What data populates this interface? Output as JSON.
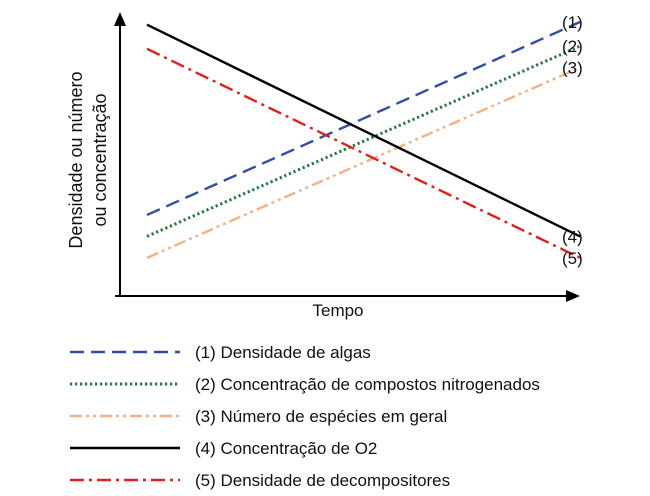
{
  "chart_data": {
    "type": "line",
    "title": "",
    "xlabel": "Tempo",
    "ylabel": [
      "Densidade ou número",
      "ou concentração"
    ],
    "x": [
      0,
      1
    ],
    "xlim": [
      0,
      1
    ],
    "ylim": [
      0,
      1
    ],
    "grid": false,
    "legend_position": "bottom",
    "series": [
      {
        "name": "(1) Densidade de algas",
        "end_label": "(1)",
        "values": [
          0.28,
          1.0
        ],
        "color": "#2f4fa8",
        "style": "dashed"
      },
      {
        "name": "(2) Concentração de compostos nitrogenados",
        "end_label": "(2)",
        "values": [
          0.2,
          0.91
        ],
        "color": "#1f7a3a",
        "style": "dotted"
      },
      {
        "name": "(3) Número de espécies em geral",
        "end_label": "(3)",
        "values": [
          0.12,
          0.83
        ],
        "color": "#f4b183",
        "style": "dashdotdot"
      },
      {
        "name": "(4) Concentração de O2",
        "end_label": "(4)",
        "values": [
          0.99,
          0.2
        ],
        "color": "#000000",
        "style": "solid"
      },
      {
        "name": "(5) Densidade de decompositores",
        "end_label": "(5)",
        "values": [
          0.9,
          0.12
        ],
        "color": "#e0201b",
        "style": "dashdot"
      }
    ]
  }
}
